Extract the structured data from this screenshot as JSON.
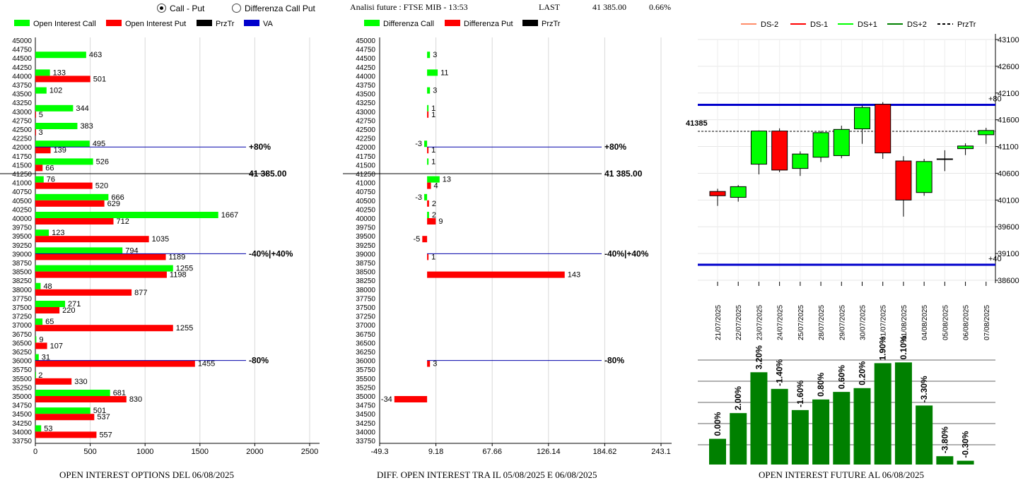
{
  "header": {
    "radio_call_put": "Call - Put",
    "radio_diff": "Differenza Call Put",
    "title": "Analisi future : FTSE MIB - 13:53",
    "last_label": "LAST",
    "last_value": "41 385.00",
    "last_pct": "0.66%"
  },
  "colors": {
    "green": "#00ff00",
    "red": "#ff0000",
    "dkgreen": "#008000",
    "blue": "#0000cc"
  },
  "charts": {
    "oi": {
      "caption": "OPEN INTEREST OPTIONS DEL 06/08/2025",
      "legend": [
        "Open Interest Call",
        "Open Interest Put",
        "PrzTr",
        "VA"
      ],
      "x_ticks": [
        "0",
        "500",
        "1000",
        "1500",
        "2000",
        "2500"
      ],
      "lines": [
        {
          "strike": 42000,
          "label": "+80%",
          "type": "blue"
        },
        {
          "strike": 41250,
          "label": "41 385.00",
          "type": "black"
        },
        {
          "strike": 39000,
          "label": "-40%|+40%",
          "type": "blue"
        },
        {
          "strike": 36000,
          "label": "-80%",
          "type": "blue"
        }
      ]
    },
    "diff": {
      "caption": "DIFF. OPEN INTEREST TRA IL 05/08/2025 E 06/08/2025",
      "legend": [
        "Differenza Call",
        "Differenza Put",
        "PrzTr"
      ],
      "x_ticks": [
        "-49.3",
        "9.18",
        "67.66",
        "126.14",
        "184.62",
        "243.1"
      ]
    },
    "candle": {
      "legend": [
        "DS-2",
        "DS-1",
        "DS+1",
        "DS+2",
        "PrzTr"
      ],
      "y_ticks": [
        "43100",
        "42600",
        "42100",
        "41600",
        "41100",
        "40600",
        "40100",
        "39600",
        "39100",
        "38600"
      ],
      "price_label": "41385",
      "upper_label": "+80",
      "lower_label": "+40",
      "dates": [
        "21/07/2025",
        "22/07/2025",
        "23/07/2025",
        "24/07/2025",
        "25/07/2025",
        "28/07/2025",
        "29/07/2025",
        "30/07/2025",
        "31/07/2025",
        "01/08/2025",
        "04/08/2025",
        "05/08/2025",
        "06/08/2025",
        "07/08/2025"
      ]
    },
    "future": {
      "caption": "OPEN INTEREST FUTURE AL 06/08/2025",
      "labels": [
        "0.00%",
        "2.00%",
        "3.20%",
        "-1.40%",
        "-1.60%",
        "0.80%",
        "0.60%",
        "0.20%",
        "1.90%",
        "0.10%",
        "-3.30%",
        "-3.80%",
        "-0.30%"
      ]
    }
  },
  "chart_data": [
    {
      "type": "bar",
      "title": "OPEN INTEREST OPTIONS DEL 06/08/2025",
      "categories": [
        45000,
        44750,
        44500,
        44250,
        44000,
        43750,
        43500,
        43250,
        43000,
        42750,
        42500,
        42250,
        42000,
        41750,
        41500,
        41250,
        41000,
        40750,
        40500,
        40250,
        40000,
        39750,
        39500,
        39250,
        39000,
        38750,
        38500,
        38250,
        38000,
        37750,
        37500,
        37250,
        37000,
        36750,
        36500,
        36250,
        36000,
        35750,
        35500,
        35250,
        35000,
        34750,
        34500,
        34250,
        34000,
        33750
      ],
      "series": [
        {
          "name": "Open Interest Call",
          "values": [
            null,
            null,
            463,
            null,
            133,
            null,
            102,
            null,
            344,
            null,
            383,
            null,
            495,
            null,
            526,
            null,
            76,
            null,
            666,
            null,
            1667,
            null,
            123,
            null,
            794,
            null,
            1255,
            null,
            48,
            null,
            271,
            null,
            65,
            null,
            9,
            null,
            31,
            null,
            2,
            null,
            681,
            null,
            501,
            null,
            53,
            null
          ]
        },
        {
          "name": "Open Interest Put",
          "values": [
            null,
            null,
            null,
            null,
            501,
            null,
            null,
            null,
            5,
            null,
            3,
            null,
            139,
            null,
            66,
            null,
            520,
            null,
            629,
            null,
            712,
            null,
            1035,
            null,
            1189,
            null,
            1198,
            null,
            877,
            null,
            220,
            null,
            1255,
            null,
            107,
            null,
            1455,
            null,
            330,
            null,
            830,
            null,
            537,
            null,
            557,
            null
          ]
        }
      ],
      "xlim": [
        0,
        2750
      ]
    },
    {
      "type": "bar",
      "title": "DIFF. OPEN INTEREST TRA IL 05/08/2025 E 06/08/2025",
      "categories": [
        45000,
        44750,
        44500,
        44250,
        44000,
        43750,
        43500,
        43250,
        43000,
        42750,
        42500,
        42250,
        42000,
        41750,
        41500,
        41250,
        41000,
        40750,
        40500,
        40250,
        40000,
        39750,
        39500,
        39250,
        39000,
        38750,
        38500,
        38250,
        38000,
        37750,
        37500,
        37250,
        37000,
        36750,
        36500,
        36250,
        36000,
        35750,
        35500,
        35250,
        35000,
        34750,
        34500,
        34250,
        34000,
        33750
      ],
      "series": [
        {
          "name": "Differenza Call",
          "values": [
            null,
            null,
            3,
            null,
            11,
            null,
            3,
            null,
            1,
            null,
            null,
            null,
            -3,
            null,
            1,
            null,
            13,
            null,
            -3,
            null,
            2,
            null,
            null,
            null,
            null,
            null,
            null,
            null,
            null,
            null,
            null,
            null,
            null,
            null,
            null,
            null,
            null,
            null,
            null,
            null,
            null,
            null,
            null,
            null,
            null,
            null
          ]
        },
        {
          "name": "Differenza Put",
          "values": [
            null,
            null,
            null,
            null,
            null,
            null,
            null,
            null,
            1,
            null,
            null,
            null,
            1,
            null,
            null,
            null,
            4,
            null,
            2,
            null,
            9,
            null,
            -5,
            null,
            1,
            null,
            143,
            null,
            null,
            null,
            null,
            null,
            null,
            null,
            null,
            null,
            3,
            null,
            null,
            null,
            -34,
            null,
            null,
            null,
            null,
            null
          ]
        }
      ],
      "xlim": [
        -49.3,
        243.1
      ]
    },
    {
      "type": "candlestick",
      "categories": [
        "21/07/2025",
        "22/07/2025",
        "23/07/2025",
        "24/07/2025",
        "25/07/2025",
        "28/07/2025",
        "29/07/2025",
        "30/07/2025",
        "31/07/2025",
        "01/08/2025",
        "04/08/2025",
        "05/08/2025",
        "06/08/2025",
        "07/08/2025"
      ],
      "open": [
        40260,
        40150,
        40770,
        41390,
        40690,
        40900,
        40930,
        41430,
        41890,
        40830,
        40240,
        40860,
        41060,
        41320
      ],
      "close": [
        40180,
        40350,
        41390,
        40660,
        40960,
        41360,
        41420,
        41830,
        40980,
        40100,
        40820,
        40870,
        41110,
        41400
      ],
      "high": [
        40310,
        40380,
        41400,
        41440,
        41010,
        41390,
        41490,
        41870,
        41930,
        40920,
        40870,
        41030,
        41160,
        41450
      ],
      "low": [
        39990,
        40070,
        40580,
        40620,
        40550,
        40810,
        40880,
        41150,
        40870,
        39790,
        40180,
        40640,
        40940,
        41150
      ],
      "price_line": 41385,
      "upper_level": 41880,
      "lower_level": 38890,
      "ylim": [
        38600,
        43100
      ]
    },
    {
      "type": "bar",
      "title": "OPEN INTEREST FUTURE AL 06/08/2025",
      "categories": [
        "21/07/2025",
        "22/07/2025",
        "23/07/2025",
        "24/07/2025",
        "25/07/2025",
        "28/07/2025",
        "29/07/2025",
        "30/07/2025",
        "31/07/2025",
        "01/08/2025",
        "04/08/2025",
        "05/08/2025",
        "06/08/2025"
      ],
      "values": [
        34,
        68,
        122,
        100,
        72,
        86,
        96,
        101,
        134,
        135,
        78,
        11,
        5
      ],
      "labels": [
        "0.00%",
        "2.00%",
        "3.20%",
        "-1.40%",
        "-1.60%",
        "0.80%",
        "0.60%",
        "0.20%",
        "1.90%",
        "0.10%",
        "-3.30%",
        "-3.80%",
        "-0.30%"
      ]
    }
  ]
}
